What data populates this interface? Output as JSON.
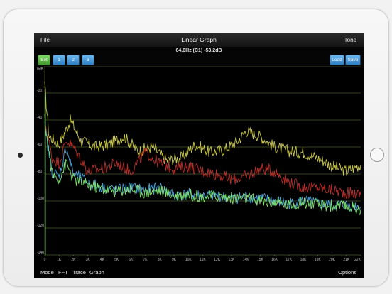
{
  "app": {
    "title": "Linear Graph",
    "menu_left": "File",
    "menu_right": "Tone",
    "readout": "64.0Hz (C1) -53.2dB"
  },
  "toolbar": {
    "set_label": "Set",
    "trace_buttons": [
      "1",
      "2",
      "3"
    ],
    "load_label": "Load",
    "save_label": "Save"
  },
  "bottom_bar": {
    "items": [
      "Mode",
      "FFT",
      "Trace",
      "Graph"
    ],
    "options_label": "Options"
  },
  "colors": {
    "accent_blue": "#3a8fd6",
    "set_green": "#55b03f",
    "trace_yellow": "#c8c64a",
    "trace_red": "#b8302a",
    "trace_blue": "#4aa0d8",
    "trace_green": "#7fe06a",
    "grid": "#4a5a2a"
  },
  "chart_data": {
    "type": "line",
    "title": "",
    "xlabel": "",
    "ylabel": "",
    "y_unit_label": "0dB",
    "ylim": [
      -140,
      0
    ],
    "xlim": [
      0,
      22000
    ],
    "y_ticks": [
      "-20",
      "-40",
      "-60",
      "-80",
      "-100",
      "-120",
      "-140"
    ],
    "x_ticks": [
      "0",
      "1K",
      "2K",
      "3K",
      "4K",
      "5K",
      "6K",
      "7K",
      "8K",
      "9K",
      "10K",
      "11K",
      "12K",
      "13K",
      "14K",
      "15K",
      "16K",
      "17K",
      "18K",
      "19K",
      "20K",
      "21K",
      "22K"
    ],
    "grid": true,
    "series": [
      {
        "color": "yellow",
        "x": [
          0,
          300,
          1000,
          1800,
          2500,
          3500,
          4500,
          5500,
          6500,
          7500,
          8500,
          9500,
          10500,
          11500,
          12500,
          13500,
          14000,
          15000,
          16000,
          17000,
          18000,
          19000,
          20000,
          21000,
          22000
        ],
        "y": [
          -15,
          -52,
          -58,
          -40,
          -55,
          -60,
          -58,
          -52,
          -63,
          -60,
          -70,
          -68,
          -58,
          -64,
          -62,
          -55,
          -48,
          -52,
          -60,
          -63,
          -64,
          -68,
          -74,
          -78,
          -73
        ]
      },
      {
        "color": "red",
        "x": [
          0,
          500,
          1000,
          1500,
          2000,
          3000,
          4000,
          5000,
          6000,
          7000,
          8000,
          9000,
          10000,
          11000,
          12000,
          13000,
          14000,
          15000,
          16000,
          17000,
          18000,
          19000,
          20000,
          21000,
          22000
        ],
        "y": [
          -40,
          -68,
          -72,
          -55,
          -60,
          -78,
          -76,
          -72,
          -78,
          -64,
          -72,
          -76,
          -74,
          -78,
          -80,
          -84,
          -82,
          -76,
          -78,
          -86,
          -90,
          -90,
          -92,
          -94,
          -95
        ]
      },
      {
        "color": "blue",
        "x": [
          0,
          500,
          1000,
          1500,
          2000,
          3000,
          4000,
          5000,
          6000,
          7000,
          8000,
          9000,
          10000,
          11000,
          12000,
          13000,
          14000,
          15000,
          16000,
          17000,
          18000,
          19000,
          20000,
          21000,
          22000
        ],
        "y": [
          -45,
          -78,
          -82,
          -60,
          -80,
          -86,
          -90,
          -92,
          -90,
          -92,
          -90,
          -96,
          -95,
          -96,
          -96,
          -98,
          -97,
          -98,
          -100,
          -102,
          -100,
          -102,
          -103,
          -103,
          -104
        ]
      },
      {
        "color": "green",
        "x": [
          0,
          500,
          1000,
          1500,
          2000,
          3000,
          4000,
          5000,
          6000,
          7000,
          8000,
          9000,
          10000,
          11000,
          12000,
          13000,
          14000,
          15000,
          16000,
          17000,
          18000,
          19000,
          20000,
          21000,
          22000
        ],
        "y": [
          -40,
          -80,
          -84,
          -72,
          -84,
          -88,
          -91,
          -93,
          -91,
          -94,
          -92,
          -96,
          -95,
          -97,
          -96,
          -98,
          -98,
          -100,
          -101,
          -103,
          -101,
          -103,
          -104,
          -104,
          -106
        ]
      }
    ]
  }
}
